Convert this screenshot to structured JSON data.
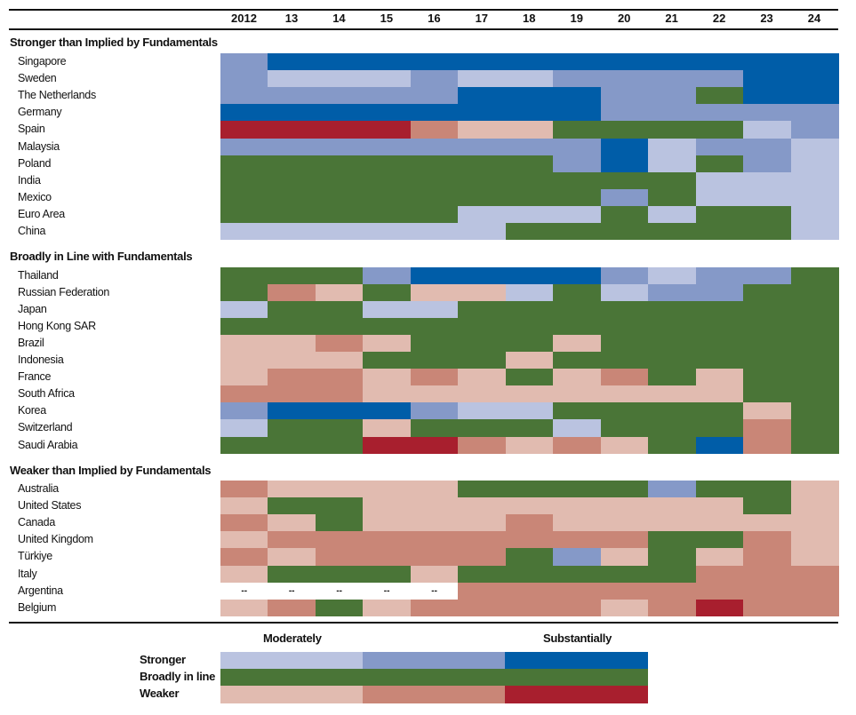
{
  "chart_data": {
    "type": "heatmap",
    "columns": [
      "2012",
      "13",
      "14",
      "15",
      "16",
      "17",
      "18",
      "19",
      "20",
      "21",
      "22",
      "23",
      "24"
    ],
    "scale": {
      "3": "Substantially stronger",
      "2": "Stronger",
      "1": "Moderately stronger",
      "0": "Broadly in line",
      "-1": "Moderately weaker",
      "-2": "Weaker",
      "-3": "Substantially weaker"
    },
    "colors": {
      "3": "#005da8",
      "2": "#8599c8",
      "1": "#bac3e0",
      "0": "#4a7537",
      "-1": "#e1bbb0",
      "-2": "#c98677",
      "-3": "#a81f2e"
    },
    "missing_label": "--",
    "groups": [
      {
        "title": "Stronger than Implied by Fundamentals",
        "rows": [
          {
            "name": "Singapore",
            "values": [
              2,
              3,
              3,
              3,
              3,
              3,
              3,
              3,
              3,
              3,
              3,
              3,
              3
            ]
          },
          {
            "name": "Sweden",
            "values": [
              2,
              1,
              1,
              1,
              2,
              1,
              1,
              2,
              2,
              2,
              2,
              3,
              3
            ]
          },
          {
            "name": "The Netherlands",
            "values": [
              2,
              2,
              2,
              2,
              2,
              3,
              3,
              3,
              2,
              2,
              0,
              3,
              3
            ]
          },
          {
            "name": "Germany",
            "values": [
              3,
              3,
              3,
              3,
              3,
              3,
              3,
              3,
              2,
              2,
              2,
              2,
              2
            ]
          },
          {
            "name": "Spain",
            "values": [
              -3,
              -3,
              -3,
              -3,
              -2,
              -1,
              -1,
              0,
              0,
              0,
              0,
              1,
              2
            ]
          },
          {
            "name": "Malaysia",
            "values": [
              2,
              2,
              2,
              2,
              2,
              2,
              2,
              2,
              3,
              1,
              2,
              2,
              1
            ]
          },
          {
            "name": "Poland",
            "values": [
              0,
              0,
              0,
              0,
              0,
              0,
              0,
              2,
              3,
              1,
              0,
              2,
              1
            ]
          },
          {
            "name": "India",
            "values": [
              0,
              0,
              0,
              0,
              0,
              0,
              0,
              0,
              0,
              0,
              1,
              1,
              1
            ]
          },
          {
            "name": "Mexico",
            "values": [
              0,
              0,
              0,
              0,
              0,
              0,
              0,
              0,
              2,
              0,
              1,
              1,
              1
            ]
          },
          {
            "name": "Euro Area",
            "values": [
              0,
              0,
              0,
              0,
              0,
              1,
              1,
              1,
              0,
              1,
              0,
              0,
              1
            ]
          },
          {
            "name": "China",
            "values": [
              1,
              1,
              1,
              1,
              1,
              1,
              0,
              0,
              0,
              0,
              0,
              0,
              1
            ]
          }
        ]
      },
      {
        "title": "Broadly in Line with Fundamentals",
        "rows": [
          {
            "name": "Thailand",
            "values": [
              0,
              0,
              0,
              2,
              3,
              3,
              3,
              3,
              2,
              1,
              2,
              2,
              0
            ]
          },
          {
            "name": "Russian Federation",
            "values": [
              0,
              -2,
              -1,
              0,
              -1,
              -1,
              1,
              0,
              1,
              2,
              2,
              0,
              0
            ]
          },
          {
            "name": "Japan",
            "values": [
              1,
              0,
              0,
              1,
              1,
              0,
              0,
              0,
              0,
              0,
              0,
              0,
              0
            ]
          },
          {
            "name": "Hong Kong SAR",
            "values": [
              0,
              0,
              0,
              0,
              0,
              0,
              0,
              0,
              0,
              0,
              0,
              0,
              0
            ]
          },
          {
            "name": "Brazil",
            "values": [
              -1,
              -1,
              -2,
              -1,
              0,
              0,
              0,
              -1,
              0,
              0,
              0,
              0,
              0
            ]
          },
          {
            "name": "Indonesia",
            "values": [
              -1,
              -1,
              -1,
              0,
              0,
              0,
              -1,
              0,
              0,
              0,
              0,
              0,
              0
            ]
          },
          {
            "name": "France",
            "values": [
              -1,
              -2,
              -2,
              -1,
              -2,
              -1,
              0,
              -1,
              -2,
              0,
              -1,
              0,
              0
            ]
          },
          {
            "name": "South Africa",
            "values": [
              -2,
              -2,
              -2,
              -1,
              -1,
              -1,
              -1,
              -1,
              -1,
              -1,
              -1,
              0,
              0
            ]
          },
          {
            "name": "Korea",
            "values": [
              2,
              3,
              3,
              3,
              2,
              1,
              1,
              0,
              0,
              0,
              0,
              -1,
              0
            ]
          },
          {
            "name": "Switzerland",
            "values": [
              1,
              0,
              0,
              -1,
              0,
              0,
              0,
              1,
              0,
              0,
              0,
              -2,
              0
            ]
          },
          {
            "name": "Saudi Arabia",
            "values": [
              0,
              0,
              0,
              -3,
              -3,
              -2,
              -1,
              -2,
              -1,
              0,
              3,
              -2,
              0
            ]
          }
        ]
      },
      {
        "title": "Weaker than Implied by Fundamentals",
        "rows": [
          {
            "name": "Australia",
            "values": [
              -2,
              -1,
              -1,
              -1,
              -1,
              0,
              0,
              0,
              0,
              2,
              0,
              0,
              -1
            ]
          },
          {
            "name": "United States",
            "values": [
              -1,
              0,
              0,
              -1,
              -1,
              -1,
              -1,
              -1,
              -1,
              -1,
              -1,
              0,
              -1
            ]
          },
          {
            "name": "Canada",
            "values": [
              -2,
              -1,
              0,
              -1,
              -1,
              -1,
              -2,
              -1,
              -1,
              -1,
              -1,
              -1,
              -1
            ]
          },
          {
            "name": "United Kingdom",
            "values": [
              -1,
              -2,
              -2,
              -2,
              -2,
              -2,
              -2,
              -2,
              -2,
              0,
              0,
              -2,
              -1
            ]
          },
          {
            "name": "Türkiye",
            "values": [
              -2,
              -1,
              -2,
              -2,
              -2,
              -2,
              0,
              2,
              -1,
              0,
              -1,
              -2,
              -1
            ]
          },
          {
            "name": "Italy",
            "values": [
              -1,
              0,
              0,
              0,
              -1,
              0,
              0,
              0,
              0,
              0,
              -2,
              -2,
              -2
            ]
          },
          {
            "name": "Argentina",
            "values": [
              null,
              null,
              null,
              null,
              null,
              -2,
              -2,
              -2,
              -2,
              -2,
              -2,
              -2,
              -2
            ]
          },
          {
            "name": "Belgium",
            "values": [
              -1,
              -2,
              0,
              -1,
              -2,
              -2,
              -2,
              -2,
              -1,
              -2,
              -3,
              -2,
              -2
            ]
          }
        ]
      }
    ],
    "legend": {
      "col_labels": [
        "Moderately",
        "Substantially"
      ],
      "rows": [
        {
          "label": "Stronger",
          "values": [
            1,
            2,
            3
          ]
        },
        {
          "label": "Broadly in line",
          "values": [
            0,
            0,
            0
          ]
        },
        {
          "label": "Weaker",
          "values": [
            -1,
            -2,
            -3
          ]
        }
      ]
    }
  }
}
